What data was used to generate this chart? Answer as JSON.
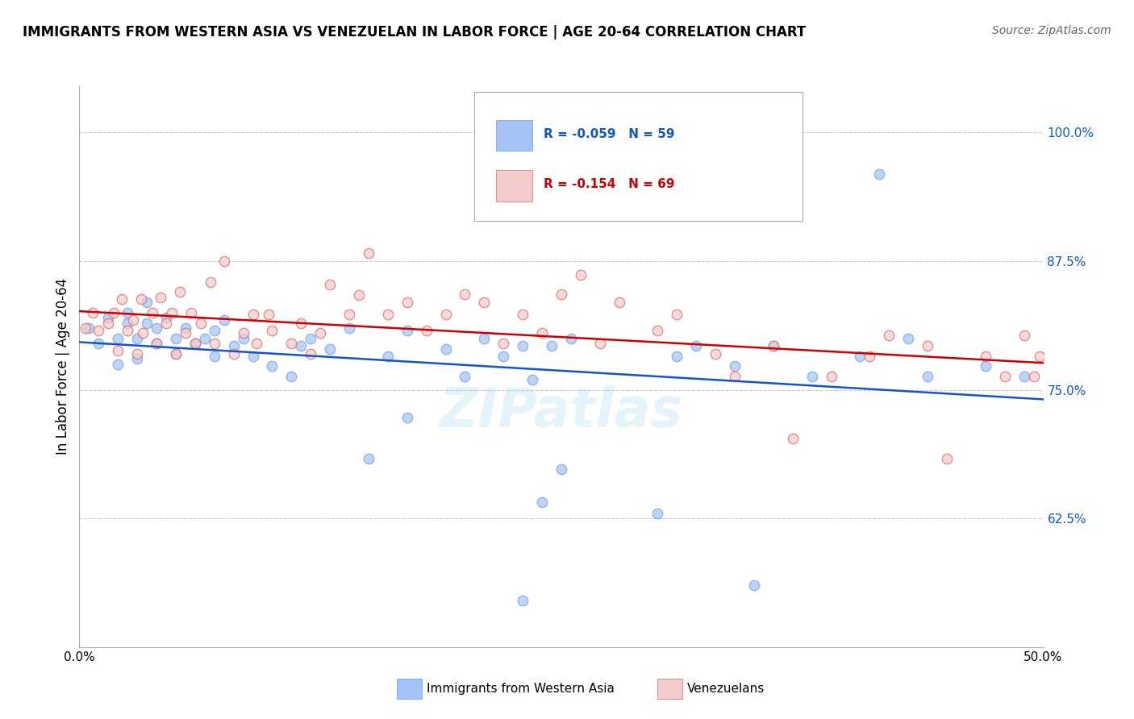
{
  "title": "IMMIGRANTS FROM WESTERN ASIA VS VENEZUELAN IN LABOR FORCE | AGE 20-64 CORRELATION CHART",
  "source": "Source: ZipAtlas.com",
  "ylabel": "In Labor Force | Age 20-64",
  "xlim": [
    0.0,
    0.5
  ],
  "ylim": [
    0.5,
    1.045
  ],
  "yticks": [
    0.625,
    0.75,
    0.875,
    1.0
  ],
  "ytick_labels": [
    "62.5%",
    "75.0%",
    "87.5%",
    "100.0%"
  ],
  "xticks": [
    0.0,
    0.1,
    0.2,
    0.3,
    0.4,
    0.5
  ],
  "xtick_labels": [
    "0.0%",
    "",
    "",
    "",
    "",
    "50.0%"
  ],
  "blue_color": "#a4c2f4",
  "pink_color": "#f4cccc",
  "blue_edge_color": "#6d9eeb",
  "pink_edge_color": "#e06666",
  "blue_line_color": "#1155cc",
  "pink_line_color": "#cc0000",
  "tick_color": "#1155cc",
  "legend_r_blue": "R = -0.059",
  "legend_n_blue": "N = 59",
  "legend_r_pink": "R = -0.154",
  "legend_n_pink": "N = 69",
  "legend_label_blue": "Immigrants from Western Asia",
  "legend_label_pink": "Venezuelans",
  "watermark": "ZIPatlas",
  "blue_x": [
    0.005,
    0.01,
    0.015,
    0.02,
    0.02,
    0.025,
    0.025,
    0.03,
    0.03,
    0.035,
    0.035,
    0.04,
    0.04,
    0.045,
    0.05,
    0.05,
    0.055,
    0.06,
    0.065,
    0.07,
    0.07,
    0.075,
    0.08,
    0.085,
    0.09,
    0.1,
    0.11,
    0.115,
    0.12,
    0.13,
    0.14,
    0.15,
    0.16,
    0.17,
    0.19,
    0.2,
    0.21,
    0.22,
    0.23,
    0.235,
    0.24,
    0.245,
    0.255,
    0.17,
    0.25,
    0.3,
    0.31,
    0.32,
    0.34,
    0.35,
    0.36,
    0.38,
    0.405,
    0.415,
    0.43,
    0.44,
    0.23,
    0.47,
    0.49
  ],
  "blue_y": [
    0.81,
    0.795,
    0.82,
    0.775,
    0.8,
    0.815,
    0.825,
    0.78,
    0.8,
    0.815,
    0.835,
    0.795,
    0.81,
    0.82,
    0.785,
    0.8,
    0.81,
    0.795,
    0.8,
    0.783,
    0.808,
    0.818,
    0.793,
    0.8,
    0.783,
    0.773,
    0.763,
    0.793,
    0.8,
    0.79,
    0.81,
    0.683,
    0.783,
    0.808,
    0.79,
    0.763,
    0.8,
    0.783,
    0.793,
    0.76,
    0.641,
    0.793,
    0.8,
    0.723,
    0.673,
    0.63,
    0.783,
    0.793,
    0.773,
    0.56,
    0.793,
    0.763,
    0.783,
    0.96,
    0.8,
    0.763,
    0.545,
    0.773,
    0.763
  ],
  "pink_x": [
    0.003,
    0.007,
    0.01,
    0.015,
    0.018,
    0.022,
    0.02,
    0.025,
    0.028,
    0.032,
    0.03,
    0.033,
    0.038,
    0.042,
    0.04,
    0.045,
    0.048,
    0.052,
    0.05,
    0.055,
    0.058,
    0.06,
    0.063,
    0.068,
    0.07,
    0.075,
    0.08,
    0.085,
    0.09,
    0.092,
    0.098,
    0.1,
    0.11,
    0.115,
    0.12,
    0.125,
    0.13,
    0.14,
    0.145,
    0.15,
    0.16,
    0.17,
    0.18,
    0.19,
    0.2,
    0.21,
    0.22,
    0.23,
    0.24,
    0.25,
    0.26,
    0.27,
    0.28,
    0.3,
    0.31,
    0.33,
    0.34,
    0.36,
    0.37,
    0.39,
    0.41,
    0.42,
    0.44,
    0.45,
    0.47,
    0.48,
    0.49,
    0.495,
    0.498
  ],
  "pink_y": [
    0.81,
    0.825,
    0.808,
    0.815,
    0.825,
    0.838,
    0.788,
    0.808,
    0.818,
    0.838,
    0.785,
    0.805,
    0.825,
    0.84,
    0.795,
    0.815,
    0.825,
    0.845,
    0.785,
    0.805,
    0.825,
    0.795,
    0.815,
    0.855,
    0.795,
    0.875,
    0.785,
    0.805,
    0.823,
    0.795,
    0.823,
    0.808,
    0.795,
    0.815,
    0.785,
    0.805,
    0.852,
    0.823,
    0.842,
    0.883,
    0.823,
    0.835,
    0.808,
    0.823,
    0.843,
    0.835,
    0.795,
    0.823,
    0.805,
    0.843,
    0.862,
    0.795,
    0.835,
    0.808,
    0.823,
    0.785,
    0.763,
    0.793,
    0.703,
    0.763,
    0.783,
    0.803,
    0.793,
    0.683,
    0.783,
    0.763,
    0.803,
    0.763,
    0.783
  ]
}
